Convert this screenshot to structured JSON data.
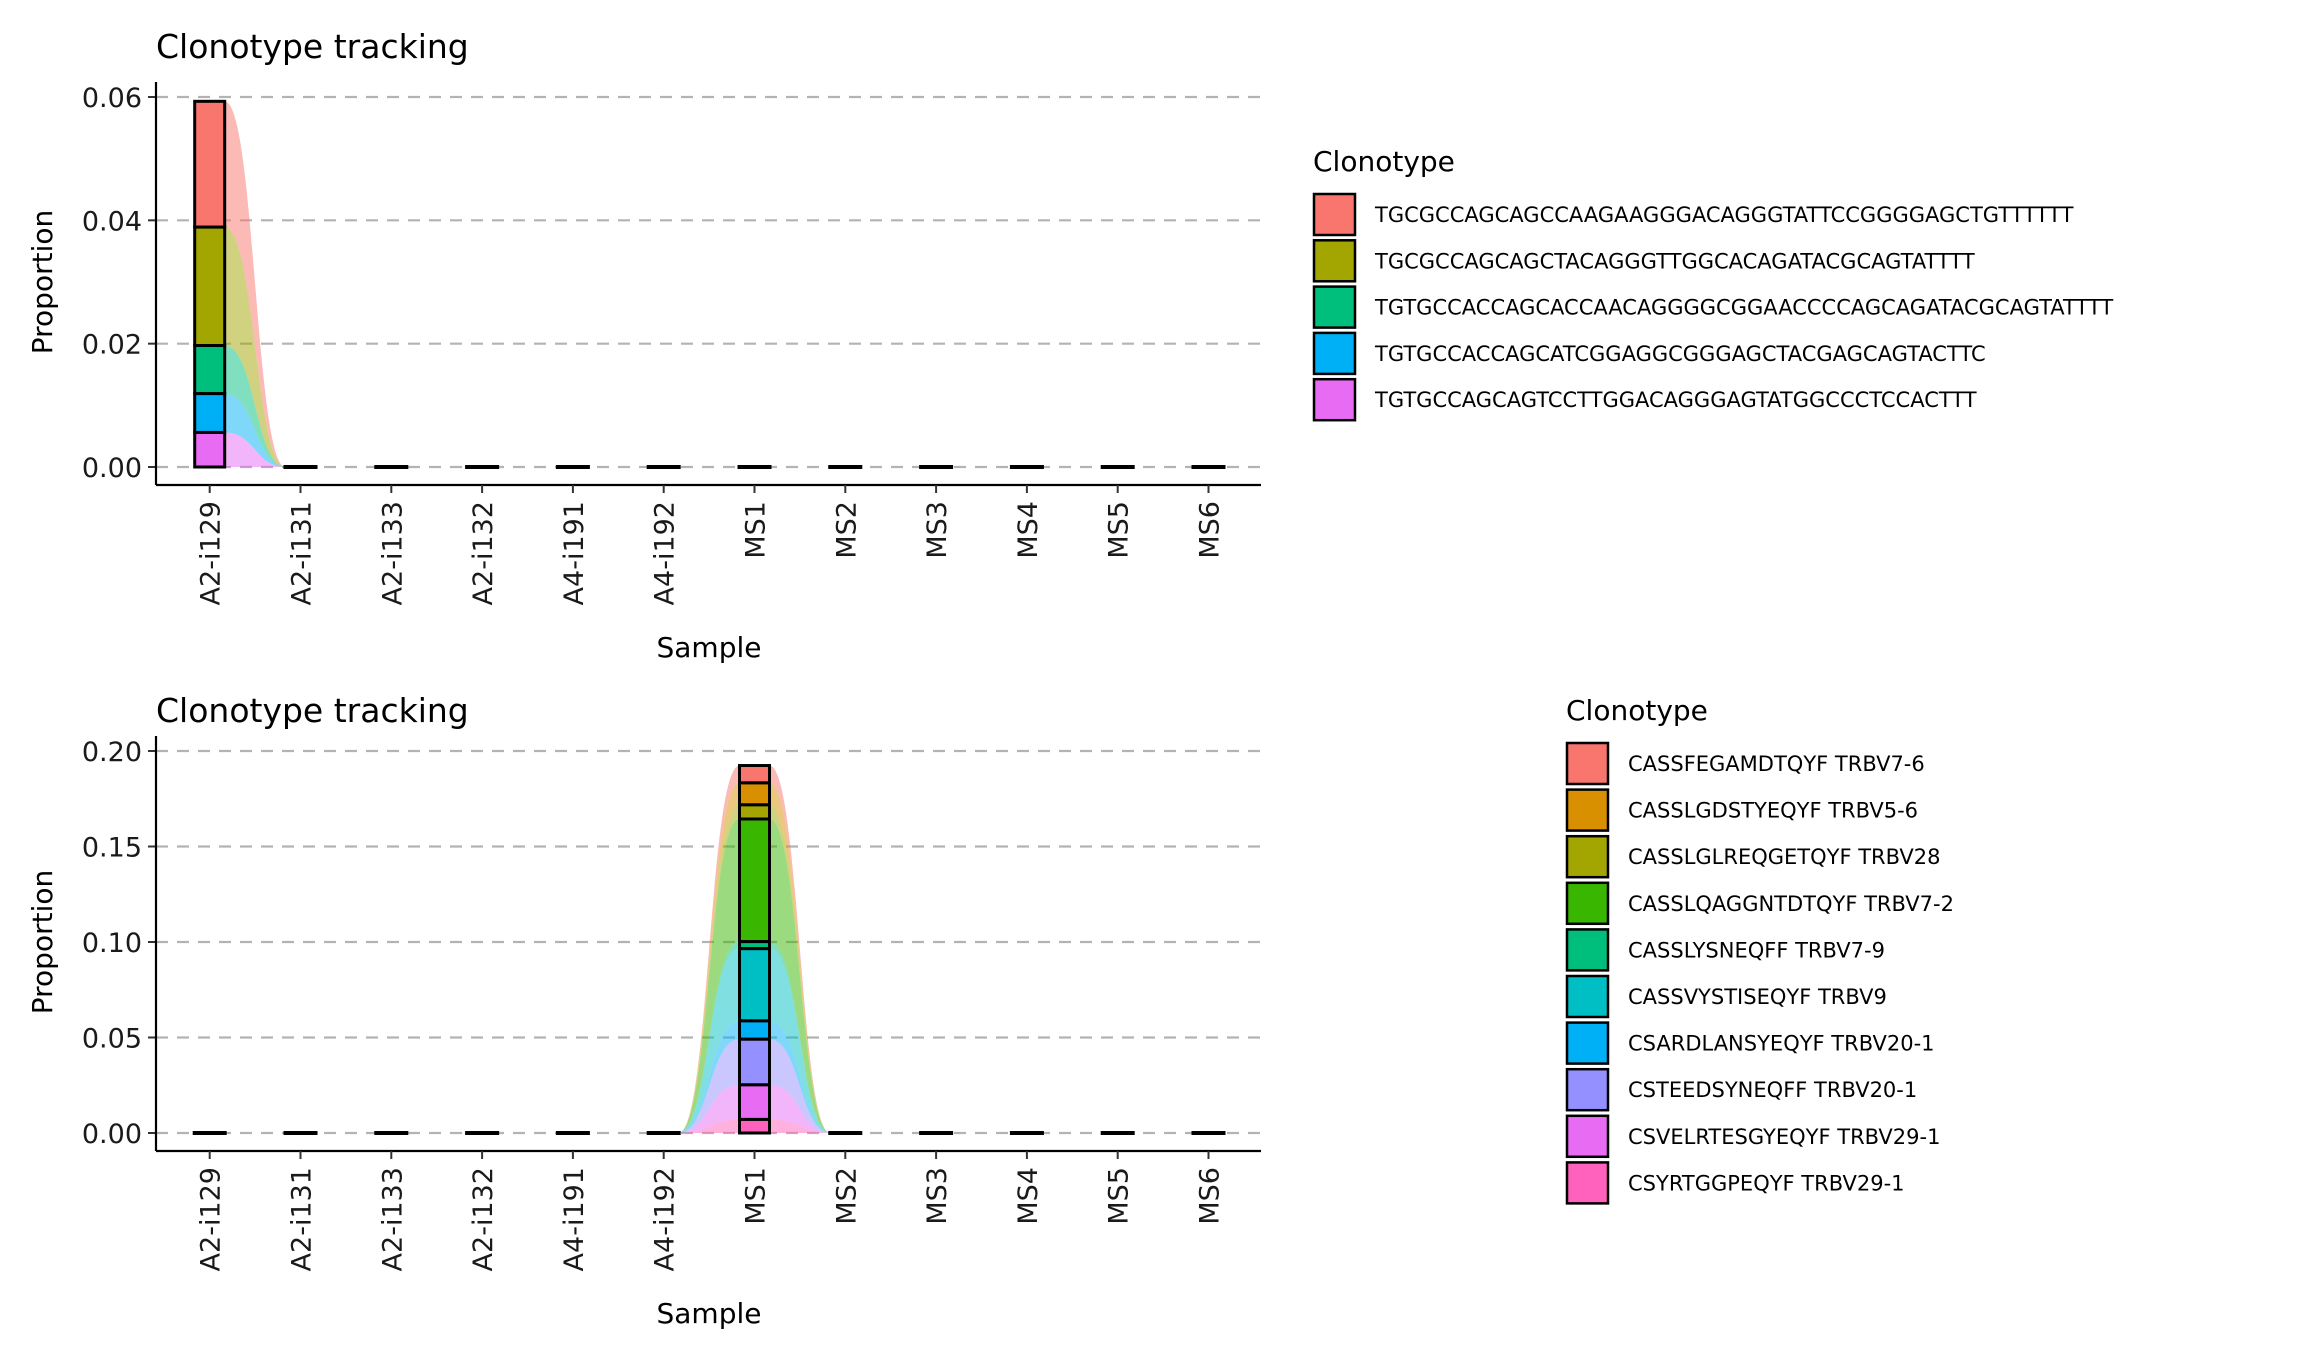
{
  "chart_data": [
    {
      "type": "bar",
      "subtype": "stacked-alluvial",
      "title": "Clonotype tracking",
      "xlabel": "Sample",
      "ylabel": "Proportion",
      "ylim": [
        0,
        0.06
      ],
      "yticks": [
        "0.00",
        "0.02",
        "0.04",
        "0.06"
      ],
      "ytick_values": [
        0,
        0.02,
        0.04,
        0.06
      ],
      "grid": "horizontal-dashed",
      "categories": [
        "A2-i129",
        "A2-i131",
        "A2-i133",
        "A2-i132",
        "A4-i191",
        "A4-i192",
        "MS1",
        "MS2",
        "MS3",
        "MS4",
        "MS5",
        "MS6"
      ],
      "legend_title": "Clonotype",
      "legend_position": "right",
      "series": [
        {
          "name": "TGCGCCAGCAGCCAAGAAGGGACAGGGTATTCCGGGGAGCTGTTTTTT",
          "color": "#F8766D",
          "values": [
            0.0204,
            0,
            0,
            0,
            0,
            0,
            0,
            0,
            0,
            0,
            0,
            0
          ]
        },
        {
          "name": "TGCGCCAGCAGCTACAGGGTTGGCACAGATACGCAGTATTTT",
          "color": "#A3A500",
          "values": [
            0.0192,
            0,
            0,
            0,
            0,
            0,
            0,
            0,
            0,
            0,
            0,
            0
          ]
        },
        {
          "name": "TGTGCCACCAGCACCAACAGGGGCGGAACCCCAGCAGATACGCAGTATTTT",
          "color": "#00BF7D",
          "values": [
            0.0078,
            0,
            0,
            0,
            0,
            0,
            0,
            0,
            0,
            0,
            0,
            0
          ]
        },
        {
          "name": "TGTGCCACCAGCATCGGAGGCGGGAGCTACGAGCAGTACTTC",
          "color": "#00B0F6",
          "values": [
            0.0063,
            0,
            0,
            0,
            0,
            0,
            0,
            0,
            0,
            0,
            0,
            0
          ]
        },
        {
          "name": "TGTGCCAGCAGTCCTTGGACAGGGAGTATGGCCCTCCACTTT",
          "color": "#E76BF3",
          "values": [
            0.0056,
            0,
            0,
            0,
            0,
            0,
            0,
            0,
            0,
            0,
            0,
            0
          ]
        }
      ]
    },
    {
      "type": "bar",
      "subtype": "stacked-alluvial",
      "title": "Clonotype tracking",
      "xlabel": "Sample",
      "ylabel": "Proportion",
      "ylim": [
        0,
        0.2
      ],
      "yticks": [
        "0.00",
        "0.05",
        "0.10",
        "0.15",
        "0.20"
      ],
      "ytick_values": [
        0,
        0.05,
        0.1,
        0.15,
        0.2
      ],
      "grid": "horizontal-dashed",
      "categories": [
        "A2-i129",
        "A2-i131",
        "A2-i133",
        "A2-i132",
        "A4-i191",
        "A4-i192",
        "MS1",
        "MS2",
        "MS3",
        "MS4",
        "MS5",
        "MS6"
      ],
      "legend_title": "Clonotype",
      "legend_position": "right",
      "series": [
        {
          "name": "CASSFEGAMDTQYF TRBV7-6",
          "color": "#F8766D",
          "values": [
            0,
            0,
            0,
            0,
            0,
            0,
            0.0091,
            0,
            0,
            0,
            0,
            0
          ]
        },
        {
          "name": "CASSLGDSTYEQYF TRBV5-6",
          "color": "#D89000",
          "values": [
            0,
            0,
            0,
            0,
            0,
            0,
            0.0115,
            0,
            0,
            0,
            0,
            0
          ]
        },
        {
          "name": "CASSLGLREQGETQYF TRBV28",
          "color": "#A3A500",
          "values": [
            0,
            0,
            0,
            0,
            0,
            0,
            0.0074,
            0,
            0,
            0,
            0,
            0
          ]
        },
        {
          "name": "CASSLQAGGNTDTQYF TRBV7-2",
          "color": "#39B600",
          "values": [
            0,
            0,
            0,
            0,
            0,
            0,
            0.0642,
            0,
            0,
            0,
            0,
            0
          ]
        },
        {
          "name": "CASSLYSNEQFF TRBV7-9",
          "color": "#00BF7D",
          "values": [
            0,
            0,
            0,
            0,
            0,
            0,
            0.0037,
            0,
            0,
            0,
            0,
            0
          ]
        },
        {
          "name": "CASSVYSTISEQYF TRBV9",
          "color": "#00BFC4",
          "values": [
            0,
            0,
            0,
            0,
            0,
            0,
            0.0378,
            0,
            0,
            0,
            0,
            0
          ]
        },
        {
          "name": "CSARDLANSYEQYF TRBV20-1",
          "color": "#00B0F6",
          "values": [
            0,
            0,
            0,
            0,
            0,
            0,
            0.0096,
            0,
            0,
            0,
            0,
            0
          ]
        },
        {
          "name": "CSTEEDSYNEQFF TRBV20-1",
          "color": "#9590FF",
          "values": [
            0,
            0,
            0,
            0,
            0,
            0,
            0.0239,
            0,
            0,
            0,
            0,
            0
          ]
        },
        {
          "name": "CSVELRTESGYEQYF TRBV29-1",
          "color": "#E76BF3",
          "values": [
            0,
            0,
            0,
            0,
            0,
            0,
            0.0181,
            0,
            0,
            0,
            0,
            0
          ]
        },
        {
          "name": "CSYRTGGPEQYF TRBV29-1",
          "color": "#FF62BC",
          "values": [
            0,
            0,
            0,
            0,
            0,
            0,
            0.0071,
            0,
            0,
            0,
            0,
            0
          ]
        }
      ]
    }
  ]
}
